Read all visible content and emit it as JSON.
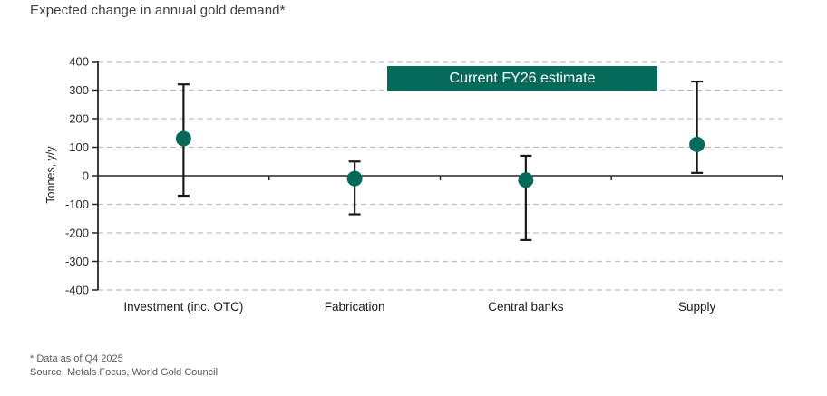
{
  "title": "Expected change in annual gold demand*",
  "legend": {
    "label": "Current FY26 estimate"
  },
  "footnotes": {
    "line1": "* Data as of Q4 2025",
    "line2": "Source: Metals Focus, World Gold Council"
  },
  "colors": {
    "accent_teal": "#066A5B",
    "legend_text": "#FFFFFF",
    "gridline": "#C0C0C0",
    "axis": "#262626",
    "error_bar": "#1A1A1A",
    "title_text": "#3F3F3F",
    "footnote_text": "#595959"
  },
  "chart_data": {
    "type": "scatter",
    "subtype": "dot-with-error-bars",
    "title": "Expected change in annual gold demand*",
    "categories": [
      "Investment (inc. OTC)",
      "Fabrication",
      "Central banks",
      "Supply"
    ],
    "series": [
      {
        "name": "Current FY26 estimate",
        "values": [
          130,
          -10,
          -15,
          110
        ],
        "error_high": [
          320,
          50,
          70,
          330
        ],
        "error_low": [
          -70,
          -135,
          -225,
          10
        ]
      }
    ],
    "xlabel": "",
    "ylabel": "Tonnes, y/y",
    "ylim": [
      -400,
      400
    ],
    "ytick_step": 100,
    "yticks": [
      400,
      300,
      200,
      100,
      0,
      -100,
      -200,
      -300,
      -400
    ],
    "grid": "dashed-horizontal",
    "legend_position": "top-center-inside"
  }
}
